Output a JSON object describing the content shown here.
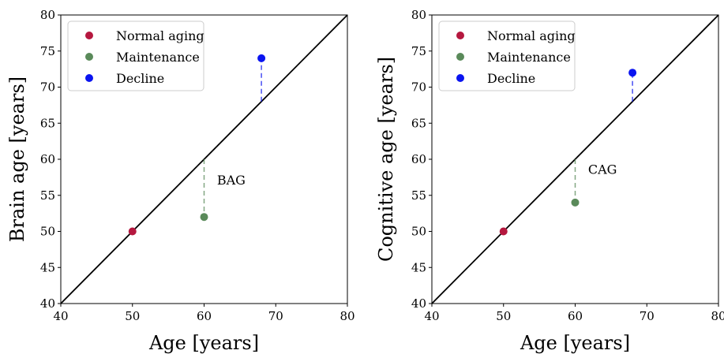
{
  "chart_data": [
    {
      "type": "scatter",
      "title": "",
      "xlabel": "Age [years]",
      "ylabel": "Brain age [years]",
      "xlim": [
        40,
        80
      ],
      "ylim": [
        40,
        80
      ],
      "xticks": [
        "40",
        "50",
        "60",
        "70",
        "80"
      ],
      "yticks": [
        "40",
        "45",
        "50",
        "55",
        "60",
        "65",
        "70",
        "75",
        "80"
      ],
      "grid": false,
      "legend_position": "top-left",
      "identity_line": true,
      "series": [
        {
          "name": "Normal aging",
          "color": "#b5183f",
          "points": [
            {
              "x": 50,
              "y": 50
            }
          ]
        },
        {
          "name": "Maintenance",
          "color": "#5a8a5a",
          "points": [
            {
              "x": 60,
              "y": 52
            }
          ]
        },
        {
          "name": "Decline",
          "color": "#0a14f0",
          "points": [
            {
              "x": 68,
              "y": 74
            }
          ]
        }
      ],
      "annotation": {
        "text": "BAG",
        "x": 61.8,
        "y": 56.5
      }
    },
    {
      "type": "scatter",
      "title": "",
      "xlabel": "Age [years]",
      "ylabel": "Cognitive age [years]",
      "xlim": [
        40,
        80
      ],
      "ylim": [
        40,
        80
      ],
      "xticks": [
        "40",
        "50",
        "60",
        "70",
        "80"
      ],
      "yticks": [
        "40",
        "45",
        "50",
        "55",
        "60",
        "65",
        "70",
        "75",
        "80"
      ],
      "grid": false,
      "legend_position": "top-left",
      "identity_line": true,
      "series": [
        {
          "name": "Normal aging",
          "color": "#b5183f",
          "points": [
            {
              "x": 50,
              "y": 50
            }
          ]
        },
        {
          "name": "Maintenance",
          "color": "#5a8a5a",
          "points": [
            {
              "x": 60,
              "y": 54
            }
          ]
        },
        {
          "name": "Decline",
          "color": "#0a14f0",
          "points": [
            {
              "x": 68,
              "y": 72
            }
          ]
        }
      ],
      "annotation": {
        "text": "CAG",
        "x": 61.8,
        "y": 58
      }
    }
  ]
}
